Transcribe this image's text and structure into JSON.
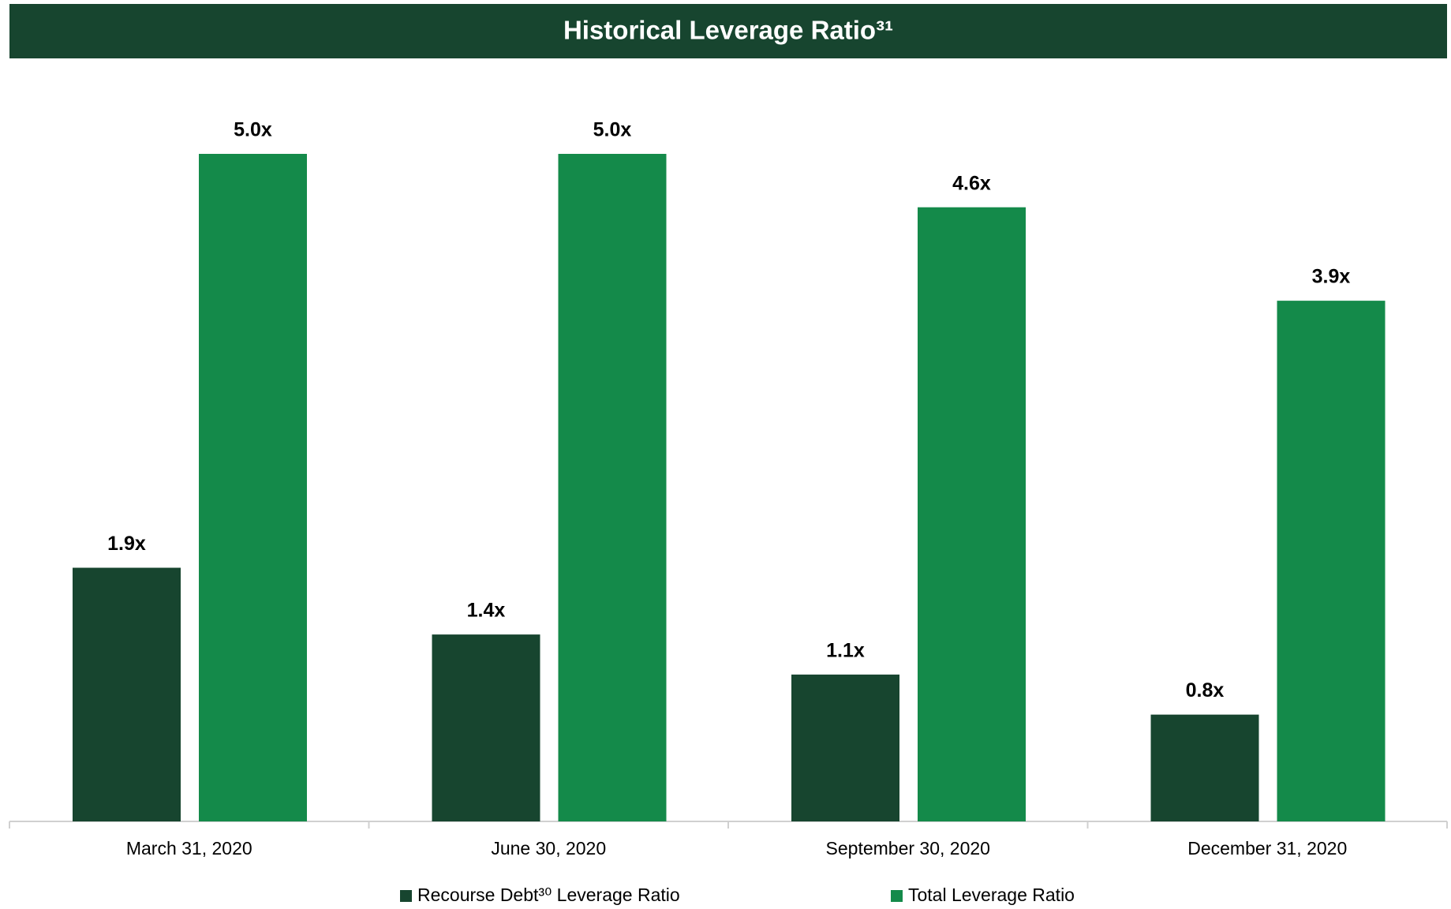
{
  "chart_data": {
    "type": "bar",
    "title": "Historical Leverage Ratio³¹",
    "categories": [
      "March 31, 2020",
      "June 30, 2020",
      "September 30, 2020",
      "December 31, 2020"
    ],
    "series": [
      {
        "name": "Recourse Debt³⁰ Leverage Ratio",
        "color": "#17452f",
        "values": [
          1.9,
          1.4,
          1.1,
          0.8
        ],
        "value_labels": [
          "1.9x",
          "1.4x",
          "1.1x",
          "0.8x"
        ]
      },
      {
        "name": "Total Leverage Ratio",
        "color": "#148a4a",
        "values": [
          5.0,
          5.0,
          4.6,
          3.9
        ],
        "value_labels": [
          "5.0x",
          "5.0x",
          "4.6x",
          "3.9x"
        ]
      }
    ],
    "grid": false,
    "legend": "bottom"
  }
}
